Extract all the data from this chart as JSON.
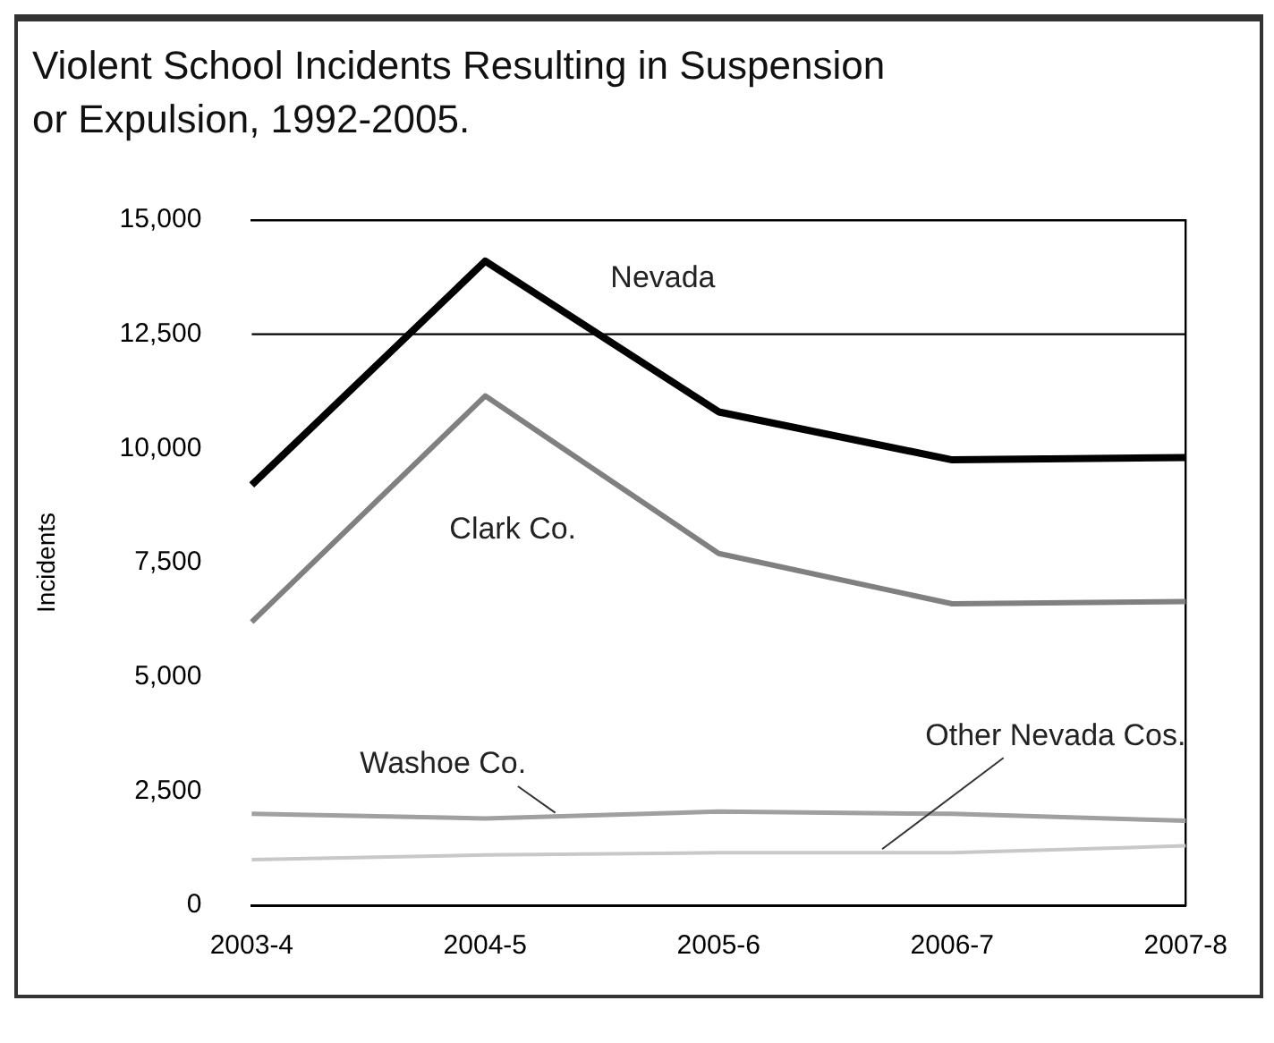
{
  "chart_data": {
    "type": "line",
    "title": "Violent School Incidents Resulting in Suspension\nor Expulsion, 1992-2005.",
    "ylabel": "Incidents",
    "categories": [
      "2003-4",
      "2004-5",
      "2005-6",
      "2006-7",
      "2007-8"
    ],
    "series": [
      {
        "name": "Nevada",
        "color": "#000000",
        "values": [
          9200,
          14100,
          10800,
          9750,
          9800
        ]
      },
      {
        "name": "Clark Co.",
        "color": "#808080",
        "values": [
          6200,
          11150,
          7700,
          6600,
          6650
        ]
      },
      {
        "name": "Washoe Co.",
        "color": "#a0a0a0",
        "values": [
          2000,
          1900,
          2050,
          2000,
          1850
        ]
      },
      {
        "name": "Other Nevada Cos.",
        "color": "#c8c8c8",
        "values": [
          1000,
          1100,
          1150,
          1150,
          1300
        ]
      }
    ],
    "ylim": [
      0,
      15000
    ],
    "yticks": [
      0,
      {
        "value": 2500,
        "label": "2,500"
      },
      {
        "value": 5000,
        "label": "5,000"
      },
      {
        "value": 7500,
        "label": "7,500"
      },
      {
        "value": 10000,
        "label": "10,000"
      },
      {
        "value": 12500,
        "label": "12,500"
      },
      {
        "value": 15000,
        "label": "15,000"
      }
    ],
    "ref_lines": [
      {
        "axis": "y",
        "value": 12500,
        "color": "#000000"
      }
    ],
    "grid": false,
    "legend": false,
    "marker": "none",
    "line_style": "solid"
  }
}
